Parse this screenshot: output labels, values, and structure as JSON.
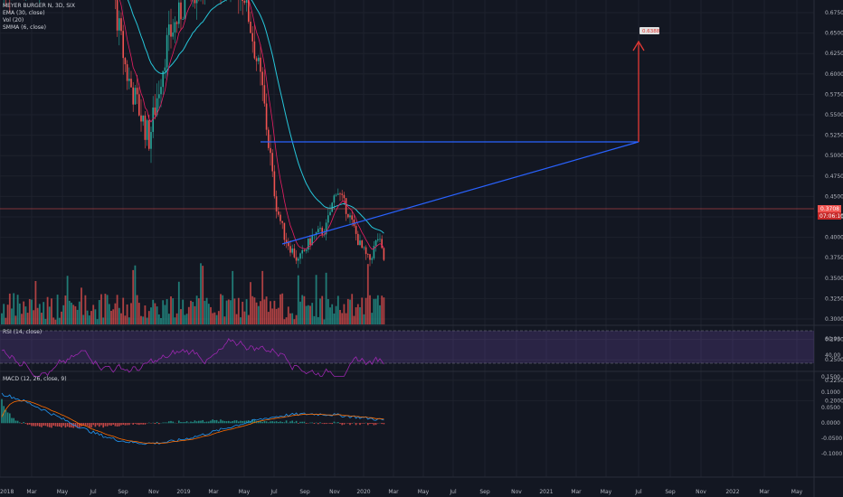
{
  "symbol": "MEYER BURGER N, 3D, SIX",
  "indicators": {
    "ema": "EMA (30, close)",
    "vol": "Vol (20)",
    "smma": "SMMA (6, close)",
    "rsi": "RSI (14, close)",
    "macd": "MACD (12, 26, close, 9)"
  },
  "price_axis": [
    "0.6750",
    "0.6500",
    "0.6250",
    "0.6000",
    "0.5750",
    "0.5500",
    "0.5250",
    "0.5000",
    "0.4750",
    "0.4500",
    "0.4250",
    "0.4000",
    "0.3750",
    "0.3500",
    "0.3250",
    "0.3000",
    "0.2750",
    "0.2500",
    "0.2250",
    "0.2000"
  ],
  "rsi_axis": [
    "60.00",
    "40.00"
  ],
  "macd_axis": [
    "0.1500",
    "0.1000",
    "0.0500",
    "0.0000",
    "-0.0500",
    "-0.1000"
  ],
  "last_price_badge": "0.3708",
  "countdown_badge": "07:06:10",
  "target_label": "0.6388",
  "time_axis": [
    "2018",
    "Mar",
    "May",
    "Jul",
    "Sep",
    "Nov",
    "2019",
    "Mar",
    "May",
    "Jul",
    "Sep",
    "Nov",
    "2020",
    "Mar",
    "May",
    "Jul",
    "Sep",
    "Nov",
    "2021",
    "Mar",
    "May",
    "Jul",
    "Sep",
    "Nov",
    "2022",
    "Mar",
    "May"
  ],
  "colors": {
    "bg": "#131722",
    "up": "#26a69a",
    "down": "#ef5350",
    "ema": "#26c6da",
    "smma": "#e91e63",
    "rsi": "#9c27b0",
    "macd": "#2196f3",
    "signal": "#ff6d00",
    "trend": "#2962ff"
  }
}
